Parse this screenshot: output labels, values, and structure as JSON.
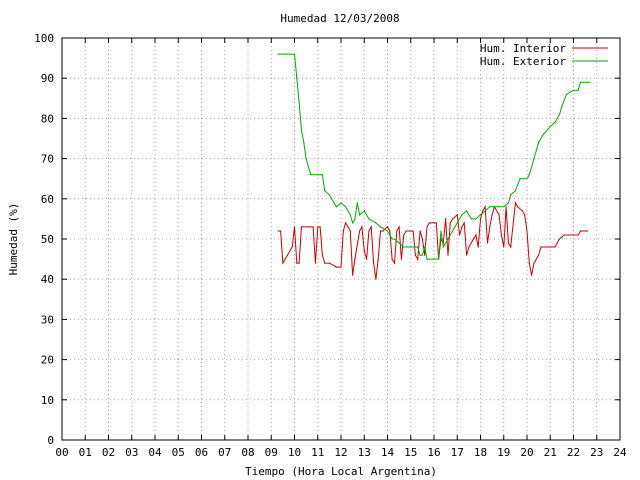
{
  "chart_data": {
    "type": "line",
    "title": "Humedad 12/03/2008",
    "xlabel": "Tiempo (Hora Local Argentina)",
    "ylabel": "Humedad (%)",
    "xlim": [
      0,
      24
    ],
    "ylim": [
      0,
      100
    ],
    "x_ticks": [
      "00",
      "01",
      "02",
      "03",
      "04",
      "05",
      "06",
      "07",
      "08",
      "09",
      "10",
      "11",
      "12",
      "13",
      "14",
      "15",
      "16",
      "17",
      "18",
      "19",
      "20",
      "21",
      "22",
      "23",
      "24"
    ],
    "y_ticks": [
      "0",
      "10",
      "20",
      "30",
      "40",
      "50",
      "60",
      "70",
      "80",
      "90",
      "100"
    ],
    "grid": true,
    "legend_position": "top-right",
    "series": [
      {
        "name": "Hum. Interior",
        "color": "#cc0000",
        "points": [
          [
            9.3,
            52
          ],
          [
            9.4,
            52
          ],
          [
            9.5,
            44
          ],
          [
            9.7,
            46
          ],
          [
            9.9,
            48
          ],
          [
            10.0,
            53
          ],
          [
            10.1,
            44
          ],
          [
            10.2,
            44
          ],
          [
            10.3,
            53
          ],
          [
            10.6,
            53
          ],
          [
            10.7,
            53
          ],
          [
            10.8,
            53
          ],
          [
            10.9,
            44
          ],
          [
            11.0,
            53
          ],
          [
            11.1,
            53
          ],
          [
            11.2,
            46
          ],
          [
            11.3,
            44
          ],
          [
            11.5,
            44
          ],
          [
            11.8,
            43
          ],
          [
            12.0,
            43
          ],
          [
            12.1,
            52
          ],
          [
            12.2,
            54
          ],
          [
            12.3,
            53
          ],
          [
            12.4,
            52
          ],
          [
            12.5,
            41
          ],
          [
            12.6,
            45
          ],
          [
            12.8,
            52
          ],
          [
            12.9,
            53
          ],
          [
            13.0,
            47
          ],
          [
            13.1,
            45
          ],
          [
            13.2,
            52
          ],
          [
            13.3,
            53
          ],
          [
            13.4,
            44
          ],
          [
            13.5,
            40
          ],
          [
            13.6,
            45
          ],
          [
            13.7,
            52
          ],
          [
            13.8,
            52
          ],
          [
            14.0,
            53
          ],
          [
            14.1,
            52
          ],
          [
            14.2,
            45
          ],
          [
            14.3,
            44
          ],
          [
            14.4,
            52
          ],
          [
            14.5,
            53
          ],
          [
            14.6,
            45
          ],
          [
            14.7,
            51
          ],
          [
            14.8,
            52
          ],
          [
            15.0,
            52
          ],
          [
            15.1,
            52
          ],
          [
            15.2,
            46
          ],
          [
            15.3,
            45
          ],
          [
            15.4,
            52
          ],
          [
            15.5,
            50
          ],
          [
            15.6,
            46
          ],
          [
            15.7,
            53
          ],
          [
            15.8,
            54
          ],
          [
            16.0,
            54
          ],
          [
            16.1,
            54
          ],
          [
            16.2,
            45
          ],
          [
            16.3,
            50
          ],
          [
            16.4,
            49
          ],
          [
            16.5,
            55
          ],
          [
            16.6,
            46
          ],
          [
            16.7,
            54
          ],
          [
            16.8,
            55
          ],
          [
            17.0,
            56
          ],
          [
            17.1,
            51
          ],
          [
            17.2,
            53
          ],
          [
            17.3,
            54
          ],
          [
            17.4,
            46
          ],
          [
            17.5,
            48
          ],
          [
            17.7,
            50
          ],
          [
            17.8,
            51
          ],
          [
            17.9,
            48
          ],
          [
            18.0,
            55
          ],
          [
            18.1,
            57
          ],
          [
            18.2,
            58
          ],
          [
            18.3,
            49
          ],
          [
            18.4,
            53
          ],
          [
            18.5,
            56
          ],
          [
            18.6,
            58
          ],
          [
            18.8,
            56
          ],
          [
            18.9,
            51
          ],
          [
            19.0,
            48
          ],
          [
            19.1,
            58
          ],
          [
            19.2,
            49
          ],
          [
            19.3,
            48
          ],
          [
            19.5,
            59
          ],
          [
            19.6,
            58
          ],
          [
            19.8,
            57
          ],
          [
            19.9,
            56
          ],
          [
            20.0,
            52
          ],
          [
            20.1,
            44
          ],
          [
            20.2,
            41
          ],
          [
            20.3,
            44
          ],
          [
            20.5,
            46
          ],
          [
            20.6,
            48
          ],
          [
            21.0,
            48
          ],
          [
            21.2,
            48
          ],
          [
            21.4,
            50
          ],
          [
            21.6,
            51
          ],
          [
            21.8,
            51
          ],
          [
            22.0,
            51
          ],
          [
            22.2,
            51
          ],
          [
            22.3,
            52
          ],
          [
            22.5,
            52
          ],
          [
            22.6,
            52
          ]
        ]
      },
      {
        "name": "Hum. Exterior",
        "color": "#00aa00",
        "points": [
          [
            9.3,
            96
          ],
          [
            9.5,
            96
          ],
          [
            10.0,
            96
          ],
          [
            10.1,
            90
          ],
          [
            10.2,
            84
          ],
          [
            10.3,
            77
          ],
          [
            10.4,
            74
          ],
          [
            10.5,
            70
          ],
          [
            10.6,
            68
          ],
          [
            10.7,
            66
          ],
          [
            11.0,
            66
          ],
          [
            11.2,
            66
          ],
          [
            11.3,
            62
          ],
          [
            11.5,
            61
          ],
          [
            11.7,
            59
          ],
          [
            11.8,
            58
          ],
          [
            12.0,
            59
          ],
          [
            12.2,
            58
          ],
          [
            12.4,
            56
          ],
          [
            12.5,
            54
          ],
          [
            12.6,
            55
          ],
          [
            12.7,
            59
          ],
          [
            12.8,
            56
          ],
          [
            13.0,
            57
          ],
          [
            13.2,
            55
          ],
          [
            13.5,
            54
          ],
          [
            13.7,
            53
          ],
          [
            14.0,
            52
          ],
          [
            14.2,
            50
          ],
          [
            14.3,
            50
          ],
          [
            14.5,
            49
          ],
          [
            14.7,
            48
          ],
          [
            15.0,
            48
          ],
          [
            15.3,
            48
          ],
          [
            15.4,
            46
          ],
          [
            15.5,
            46
          ],
          [
            15.6,
            48
          ],
          [
            15.7,
            45
          ],
          [
            16.0,
            45
          ],
          [
            16.2,
            45
          ],
          [
            16.3,
            52
          ],
          [
            16.4,
            48
          ],
          [
            16.6,
            50
          ],
          [
            16.8,
            52
          ],
          [
            17.0,
            54
          ],
          [
            17.2,
            56
          ],
          [
            17.4,
            57
          ],
          [
            17.6,
            55
          ],
          [
            17.8,
            55
          ],
          [
            18.0,
            56
          ],
          [
            18.2,
            57
          ],
          [
            18.4,
            58
          ],
          [
            18.6,
            58
          ],
          [
            18.8,
            58
          ],
          [
            19.0,
            58
          ],
          [
            19.2,
            59
          ],
          [
            19.3,
            61
          ],
          [
            19.5,
            62
          ],
          [
            19.7,
            65
          ],
          [
            20.0,
            65
          ],
          [
            20.1,
            66
          ],
          [
            20.3,
            70
          ],
          [
            20.5,
            74
          ],
          [
            20.7,
            76
          ],
          [
            21.0,
            78
          ],
          [
            21.2,
            79
          ],
          [
            21.4,
            81
          ],
          [
            21.5,
            83
          ],
          [
            21.7,
            86
          ],
          [
            22.0,
            87
          ],
          [
            22.2,
            87
          ],
          [
            22.3,
            89
          ],
          [
            22.7,
            89
          ]
        ]
      }
    ]
  }
}
